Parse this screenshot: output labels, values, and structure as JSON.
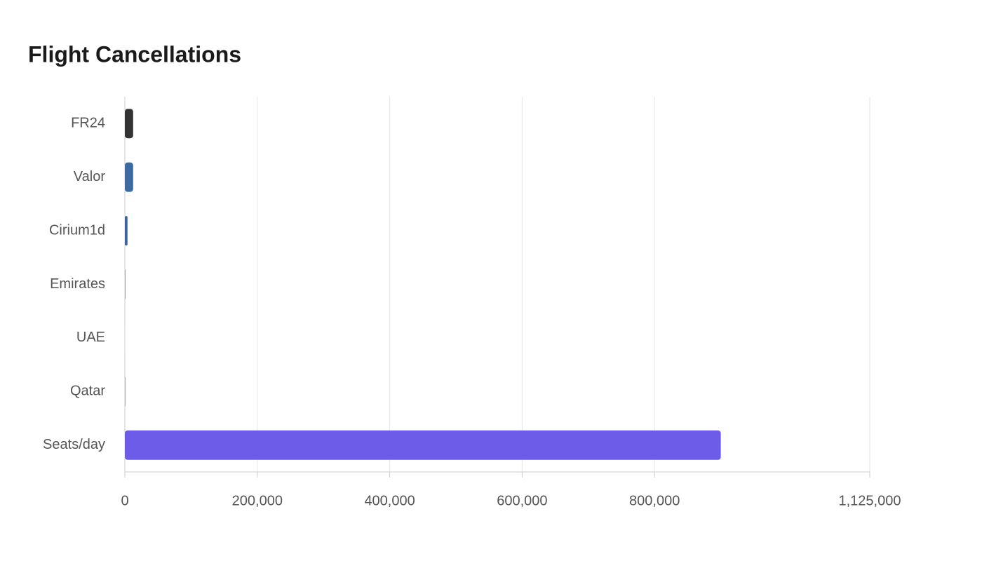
{
  "chart_data": {
    "type": "hbar",
    "title": "Flight Cancellations",
    "categories": [
      "FR24",
      "Valor",
      "Cirium1d",
      "Emirates",
      "UAE",
      "Qatar",
      "Seats/day"
    ],
    "values": [
      12500,
      12500,
      4000,
      1000,
      300,
      500,
      900000
    ],
    "colors": [
      "#333333",
      "#3d6aa0",
      "#3d64a0",
      "#999999",
      "#dddddd",
      "#555555",
      "#6c5ce7"
    ],
    "xlim": [
      0,
      1125000
    ],
    "xticks": [
      0,
      {
        "value": 200000,
        "label": "200,000"
      },
      {
        "value": 400000,
        "label": "400,000"
      },
      {
        "value": 600000,
        "label": "600,000"
      },
      {
        "value": 800000,
        "label": "800,000"
      },
      {
        "value": 1125000,
        "label": "1,125,000"
      }
    ],
    "grid": true
  }
}
